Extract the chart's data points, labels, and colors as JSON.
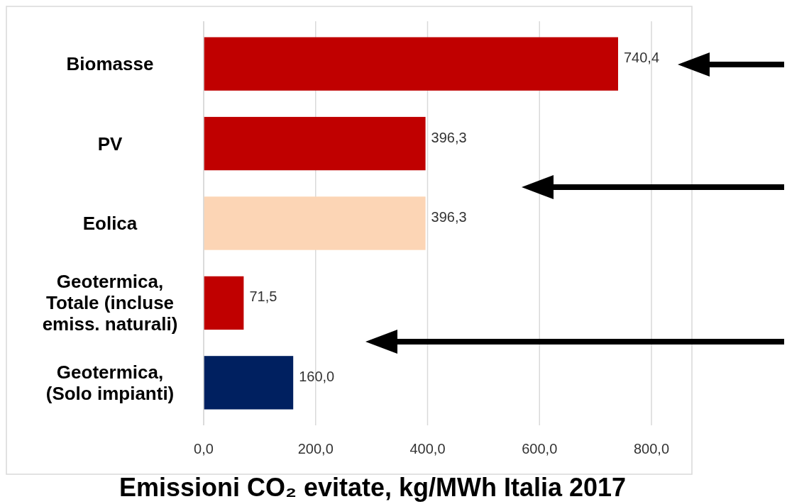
{
  "chart_data": {
    "type": "bar",
    "orientation": "horizontal",
    "xlabel": "Emissioni CO₂ evitate, kg/MWh Italia 2017",
    "categories": [
      "Biomasse",
      "PV",
      "Eolica",
      "Geotermica, Totale (incluse emiss. naturali)",
      "Geotermica, (Solo impianti)"
    ],
    "values": [
      740.4,
      396.3,
      396.3,
      71.5,
      160.0
    ],
    "colors": [
      "#c00000",
      "#c00000",
      "#fcd5b5",
      "#c00000",
      "#002060"
    ],
    "value_labels": [
      "740,4",
      "396,3",
      "396,3",
      "71,5",
      "160,0"
    ],
    "xlim": [
      0,
      800
    ],
    "xticks": [
      {
        "value": 0,
        "label": "0,0"
      },
      {
        "value": 200,
        "label": "200,0"
      },
      {
        "value": 400,
        "label": "400,0"
      },
      {
        "value": 600,
        "label": "600,0"
      },
      {
        "value": 800,
        "label": "800,0"
      }
    ],
    "grid": "x"
  }
}
